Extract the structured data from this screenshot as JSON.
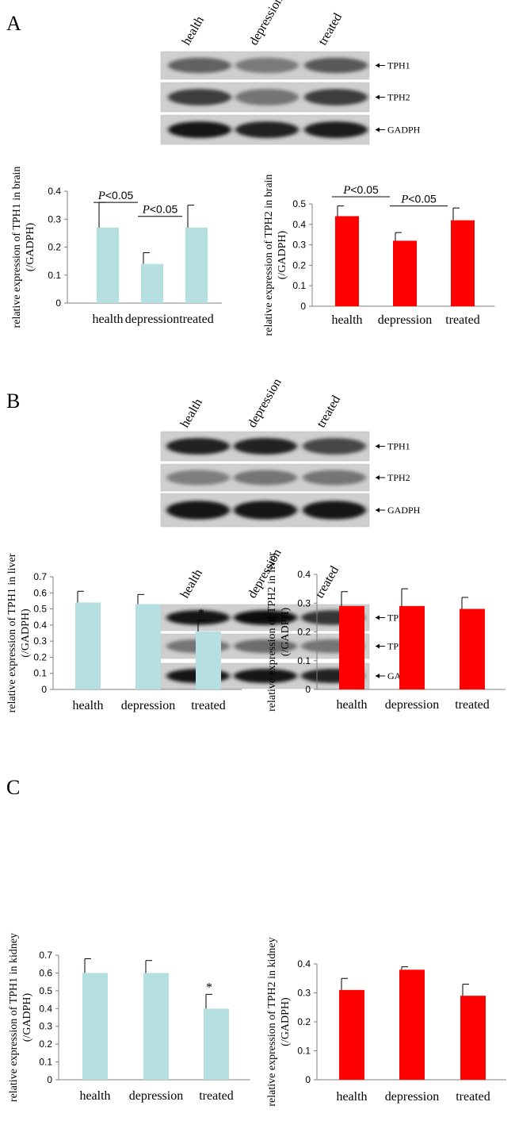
{
  "figure": {
    "panels": [
      {
        "letter": "A",
        "blot": {
          "lanes": [
            "health",
            "depression",
            "treated"
          ],
          "bands": [
            {
              "label": "TPH1",
              "intensities": [
                0.55,
                0.42,
                0.6
              ]
            },
            {
              "label": "TPH2",
              "intensities": [
                0.75,
                0.45,
                0.75
              ]
            },
            {
              "label": "GADPH",
              "intensities": [
                0.95,
                0.9,
                0.92
              ]
            }
          ]
        }
      },
      {
        "letter": "B",
        "blot": {
          "lanes": [
            "health",
            "depression",
            "treated"
          ],
          "bands": [
            {
              "label": "TPH1",
              "intensities": [
                0.9,
                0.9,
                0.7
              ]
            },
            {
              "label": "TPH2",
              "intensities": [
                0.4,
                0.45,
                0.45
              ]
            },
            {
              "label": "GADPH",
              "intensities": [
                0.97,
                0.95,
                0.95
              ]
            }
          ]
        }
      },
      {
        "letter": "C",
        "blot": {
          "lanes": [
            "health",
            "depression",
            "treated"
          ],
          "bands": [
            {
              "label": "TPH1",
              "intensities": [
                0.97,
                1.0,
                0.8
              ]
            },
            {
              "label": "TPH2",
              "intensities": [
                0.45,
                0.5,
                0.45
              ]
            },
            {
              "label": "GADPH",
              "intensities": [
                0.95,
                0.95,
                0.9
              ]
            }
          ]
        }
      }
    ]
  },
  "chart_data": [
    {
      "id": "a1",
      "type": "bar",
      "title": "",
      "ylabel_line1": "relative expression of TPH1 in brain",
      "ylabel_line2": "(/GADPH)",
      "categories": [
        "health",
        "depression",
        "treated"
      ],
      "values": [
        0.27,
        0.14,
        0.27
      ],
      "errors": [
        0.09,
        0.04,
        0.08
      ],
      "ylim": [
        0,
        0.4
      ],
      "ticks": [
        "0",
        "0.1",
        "0.2",
        "0.3",
        "0.4"
      ],
      "color": "#b5dfe0",
      "significance": [
        {
          "italic": "P",
          "rest": "<0.05",
          "from": 0,
          "to": 1,
          "y": 0.36
        },
        {
          "italic": "P",
          "rest": "<0.05",
          "from": 1,
          "to": 2,
          "y": 0.31
        }
      ],
      "stars": [],
      "grid": false
    },
    {
      "id": "a2",
      "type": "bar",
      "title": "",
      "ylabel_line1": "relative expression of TPH2 in brain",
      "ylabel_line2": "(/GADPH)",
      "categories": [
        "health",
        "depression",
        "treated"
      ],
      "values": [
        0.44,
        0.32,
        0.42
      ],
      "errors": [
        0.05,
        0.04,
        0.06
      ],
      "ylim": [
        0,
        0.5
      ],
      "ticks": [
        "0",
        "0.1",
        "0.2",
        "0.3",
        "0.4",
        "0.5"
      ],
      "color": "#ff0000",
      "significance": [
        {
          "italic": "P",
          "rest": "<0.05",
          "from": 0,
          "to": 1,
          "y": 0.535
        },
        {
          "italic": "P",
          "rest": "<0.05",
          "from": 1,
          "to": 2,
          "y": 0.49
        }
      ],
      "stars": [],
      "grid": false
    },
    {
      "id": "b1",
      "type": "bar",
      "title": "",
      "ylabel_line1": "relative expression of TPH1 in liver",
      "ylabel_line2": "(/GADPH)",
      "categories": [
        "health",
        "depression",
        "treated"
      ],
      "values": [
        0.54,
        0.53,
        0.36
      ],
      "errors": [
        0.07,
        0.06,
        0.07
      ],
      "ylim": [
        0,
        0.7
      ],
      "ticks": [
        "0",
        "0.1",
        "0.2",
        "0.3",
        "0.4",
        "0.5",
        "0.6",
        "0.7"
      ],
      "color": "#b5dfe0",
      "significance": [],
      "stars": [
        {
          "index": 2,
          "text": "*"
        }
      ],
      "grid": false
    },
    {
      "id": "b2",
      "type": "bar",
      "title": "",
      "ylabel_line1": "relative expression of TPH2 in liver",
      "ylabel_line2": "(/GADPH)",
      "categories": [
        "health",
        "depression",
        "treated"
      ],
      "values": [
        0.29,
        0.29,
        0.28
      ],
      "errors": [
        0.05,
        0.06,
        0.04
      ],
      "ylim": [
        0,
        0.4
      ],
      "ticks": [
        "0",
        "0.1",
        "0.2",
        "0.3",
        "0.4"
      ],
      "color": "#ff0000",
      "significance": [],
      "stars": [],
      "grid": false
    },
    {
      "id": "c1",
      "type": "bar",
      "title": "",
      "ylabel_line1": "relative expression of TPH1 in kidney",
      "ylabel_line2": "(/GADPH)",
      "categories": [
        "health",
        "depression",
        "treated"
      ],
      "values": [
        0.6,
        0.6,
        0.4
      ],
      "errors": [
        0.08,
        0.07,
        0.08
      ],
      "ylim": [
        0,
        0.7
      ],
      "ticks": [
        "0",
        "0.1",
        "0.2",
        "0.3",
        "0.4",
        "0.5",
        "0.6",
        "0.7"
      ],
      "color": "#b5dfe0",
      "significance": [],
      "stars": [
        {
          "index": 2,
          "text": "*"
        }
      ],
      "grid": false
    },
    {
      "id": "c2",
      "type": "bar",
      "title": "",
      "ylabel_line1": "relative expression of TPH2 in kidney",
      "ylabel_line2": "(/GADPH)",
      "categories": [
        "health",
        "depression",
        "treated"
      ],
      "values": [
        0.31,
        0.38,
        0.29
      ],
      "errors": [
        0.04,
        0.01,
        0.04
      ],
      "ylim": [
        0,
        0.4
      ],
      "ticks": [
        "0",
        "0.1",
        "0.2",
        "0.3",
        "0.4"
      ],
      "color": "#ff0000",
      "significance": [],
      "stars": [],
      "grid": false
    }
  ]
}
